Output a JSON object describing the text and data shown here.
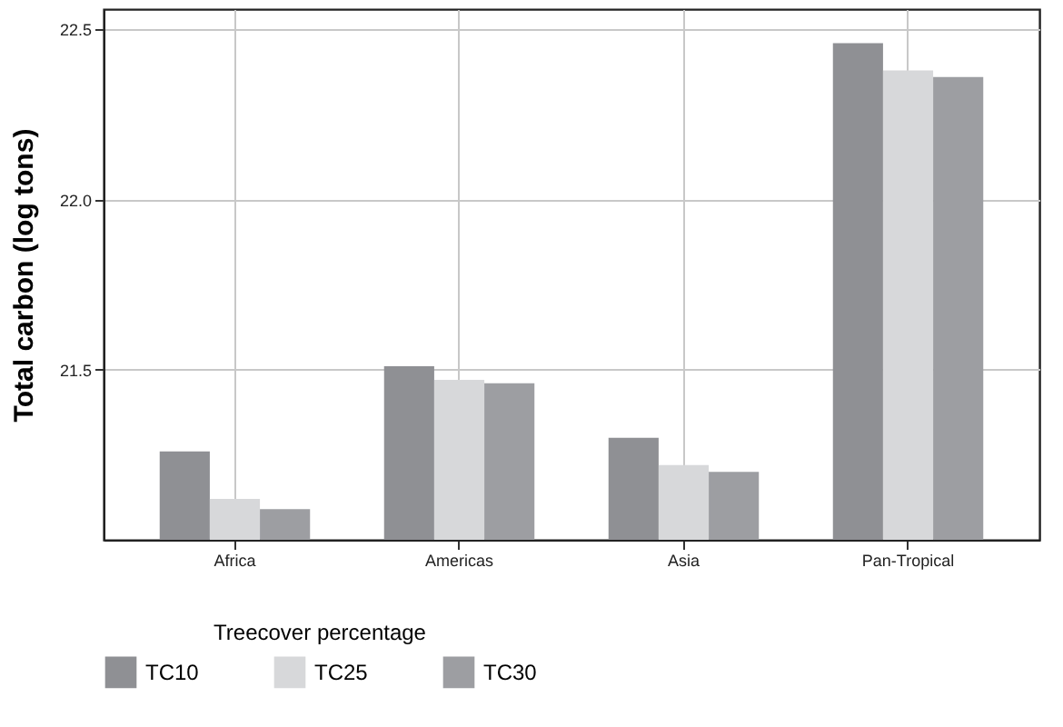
{
  "chart_data": {
    "type": "bar",
    "ylabel": "Total carbon (log tons)",
    "legend_title": "Treecover percentage",
    "categories": [
      "Africa",
      "Americas",
      "Asia",
      "Pan-Tropical"
    ],
    "series": [
      {
        "name": "TC10",
        "color": "#8f9094",
        "values": [
          21.26,
          21.51,
          21.3,
          22.46
        ]
      },
      {
        "name": "TC25",
        "color": "#d7d8da",
        "values": [
          21.12,
          21.47,
          21.22,
          22.38
        ]
      },
      {
        "name": "TC30",
        "color": "#9d9ea2",
        "values": [
          21.09,
          21.46,
          21.2,
          22.36
        ]
      }
    ],
    "ylim": [
      21.0,
      22.56
    ],
    "yticks": [
      {
        "value": 21.5,
        "label": "21.5"
      },
      {
        "value": 22.0,
        "label": "22.0"
      },
      {
        "value": 22.5,
        "label": "22.5"
      }
    ],
    "grid": true,
    "legend": "bottom"
  }
}
